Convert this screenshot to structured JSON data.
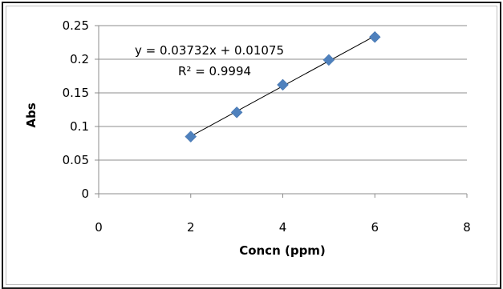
{
  "chart_data": {
    "type": "scatter",
    "xlabel": "Concn (ppm)",
    "ylabel": "Abs",
    "xlim": [
      0,
      8
    ],
    "ylim": [
      0,
      0.25
    ],
    "xticks": [
      "0",
      "2",
      "4",
      "6",
      "8"
    ],
    "yticks": [
      "0",
      "0.05",
      "0.1",
      "0.15",
      "0.2",
      "0.25"
    ],
    "grid": "horizontal",
    "marker_color": "#4f81bd",
    "trendline_color": "#000000",
    "series": [
      {
        "x": [
          2,
          3,
          4,
          5,
          6
        ],
        "y": [
          0.085,
          0.121,
          0.162,
          0.199,
          0.233
        ]
      }
    ],
    "trendline": {
      "slope": 0.03732,
      "intercept": 0.01075,
      "x_range": [
        2,
        6
      ]
    },
    "annotations": {
      "equation": "y = 0.03732x + 0.01075",
      "r_squared": "R² = 0.9994"
    }
  }
}
